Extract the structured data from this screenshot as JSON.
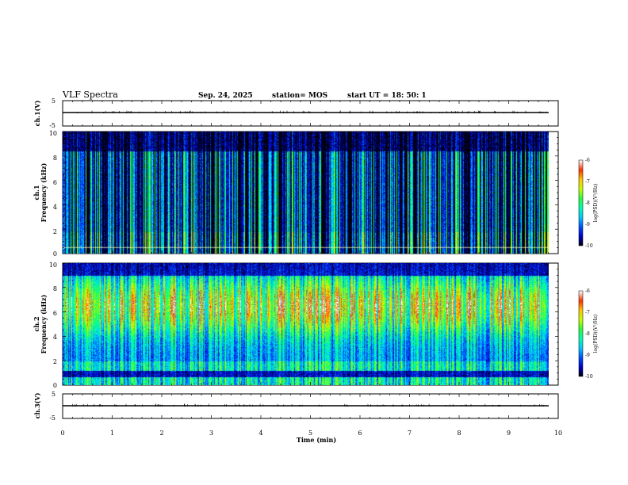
{
  "header": {
    "title": "VLF Spectra",
    "date": "Sep. 24, 2025",
    "station": "station= MOS",
    "start": "start  UT  =   18: 50: 1"
  },
  "chart_data": [
    {
      "type": "line",
      "name": "ch1-waveform",
      "ylabel": "ch.1(V)",
      "ylim": [
        -5,
        5
      ],
      "ytick_labels": [
        "5",
        "-5"
      ],
      "baseline": -1.5
    },
    {
      "type": "heatmap",
      "name": "ch1-spectrogram",
      "ylabel_line1": "ch.1",
      "ylabel_line2": "Frequency (kHz)",
      "ylim": [
        0,
        10
      ],
      "ytick_labels": [
        "0",
        "2",
        "4",
        "6",
        "8",
        "10"
      ],
      "data_xlim": [
        0,
        9.83
      ],
      "colorbar": {
        "label": "log(PSD)(V²/Hz)",
        "range": [
          -10,
          -6
        ],
        "tick_labels": [
          "-6",
          "-7",
          "-8",
          "-9",
          "-10"
        ]
      }
    },
    {
      "type": "heatmap",
      "name": "ch2-spectrogram",
      "ylabel_line1": "ch.2",
      "ylabel_line2": "Frequency (kHz)",
      "ylim": [
        0,
        10
      ],
      "ytick_labels": [
        "0",
        "2",
        "4",
        "6",
        "8",
        "10"
      ],
      "data_xlim": [
        0,
        9.83
      ],
      "colorbar": {
        "label": "log(PSD)(V²/Hz)",
        "range": [
          -10,
          -6
        ],
        "tick_labels": [
          "-6",
          "-7",
          "-8",
          "-9",
          "-10"
        ]
      }
    },
    {
      "type": "line",
      "name": "ch3-waveform",
      "ylabel": "ch.3(V)",
      "ylim": [
        -5,
        5
      ],
      "ytick_labels": [
        "5",
        "-5"
      ],
      "baseline": -1.5
    }
  ],
  "x_axis": {
    "xlabel": "Time  (min)",
    "xlim": [
      0,
      10
    ],
    "tick_labels": [
      "0",
      "1",
      "2",
      "3",
      "4",
      "5",
      "6",
      "7",
      "8",
      "9",
      "10"
    ]
  },
  "colors": {
    "colormap": [
      "#000000",
      "#0000c8",
      "#0050ff",
      "#00c8ff",
      "#00ffb4",
      "#28ff3c",
      "#c8ff00",
      "#ffc800",
      "#ff3200",
      "#ffffff"
    ]
  }
}
